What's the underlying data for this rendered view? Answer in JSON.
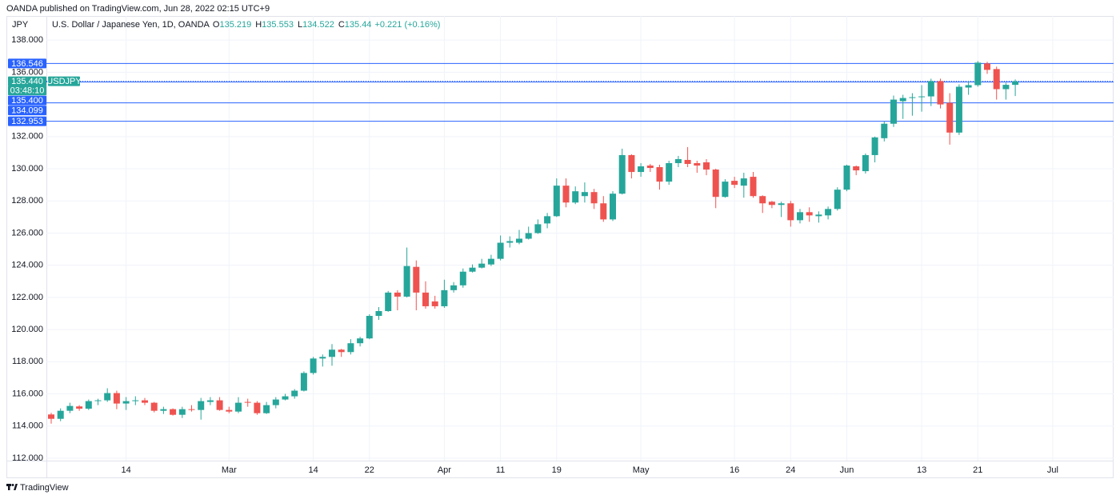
{
  "chart_data": {
    "type": "candlestick",
    "attribution": "OANDA published on TradingView.com, Jun 28, 2022 02:15 UTC+9",
    "title": "U.S. Dollar / Japanese Yen, 1D, OANDA",
    "ohlc_letters": [
      "O",
      "H",
      "L",
      "C"
    ],
    "change": "+0.221 (+0.16%)",
    "y_label": "JPY",
    "brand": "TradingView",
    "up_color": "#26a69a",
    "down_color": "#ef5350",
    "grid": true,
    "categories": [
      null,
      null,
      null,
      null,
      null,
      null,
      null,
      null,
      "14",
      null,
      null,
      null,
      null,
      null,
      null,
      null,
      null,
      null,
      null,
      "Mar",
      null,
      null,
      null,
      null,
      null,
      null,
      null,
      null,
      "14",
      null,
      null,
      null,
      null,
      null,
      "22",
      null,
      null,
      null,
      null,
      null,
      null,
      null,
      "Apr",
      null,
      null,
      null,
      null,
      null,
      "11",
      null,
      null,
      null,
      null,
      null,
      "19",
      null,
      null,
      null,
      null,
      null,
      null,
      null,
      null,
      "May",
      null,
      null,
      null,
      null,
      null,
      null,
      null,
      null,
      null,
      "16",
      null,
      null,
      null,
      null,
      null,
      "24",
      null,
      null,
      null,
      null,
      null,
      "Jun",
      null,
      null,
      null,
      null,
      null,
      null,
      null,
      "13",
      null,
      null,
      null,
      null,
      null,
      "21",
      null,
      null,
      null,
      null,
      null,
      null,
      null,
      "Jul"
    ],
    "open": [
      114.72,
      114.45,
      114.95,
      115.22,
      115.08,
      115.55,
      115.6,
      116.05,
      115.4,
      115.55,
      115.6,
      115.45,
      114.95,
      115.05,
      114.7,
      115.05,
      115.0,
      115.5,
      115.6,
      115.0,
      114.9,
      115.5,
      115.45,
      114.8,
      115.3,
      115.65,
      115.85,
      116.2,
      117.3,
      118.2,
      118.3,
      118.75,
      118.6,
      119.15,
      119.45,
      120.85,
      121.15,
      122.3,
      122.05,
      123.9,
      122.3,
      121.75,
      121.45,
      122.45,
      122.75,
      123.6,
      123.85,
      124.05,
      124.4,
      125.4,
      125.4,
      125.65,
      126.0,
      126.6,
      127.05,
      128.95,
      127.9,
      128.3,
      128.55,
      127.85,
      126.85,
      128.45,
      130.85,
      129.8,
      130.2,
      130.1,
      129.2,
      130.35,
      130.55,
      130.35,
      130.4,
      129.95,
      128.25,
      129.25,
      128.95,
      129.5,
      128.3,
      127.95,
      127.75,
      127.85,
      126.8,
      127.3,
      127.05,
      127.1,
      127.5,
      128.7,
      130.15,
      129.85,
      130.85,
      131.9,
      132.8,
      134.2,
      134.4,
      134.45,
      134.5,
      135.45,
      134.1,
      132.25,
      135.05,
      135.2,
      136.55,
      136.2,
      134.95,
      135.219,
      null,
      null,
      null,
      null
    ],
    "high": [
      114.82,
      115.1,
      115.45,
      115.3,
      115.65,
      115.7,
      116.35,
      116.2,
      115.8,
      115.85,
      115.75,
      115.5,
      115.2,
      115.1,
      115.2,
      115.3,
      115.75,
      115.8,
      115.8,
      115.2,
      115.8,
      115.7,
      115.55,
      115.5,
      115.8,
      116.0,
      116.3,
      117.4,
      118.3,
      118.45,
      119.1,
      118.8,
      119.4,
      119.55,
      120.95,
      121.4,
      122.4,
      122.45,
      125.1,
      124.3,
      123.0,
      122.1,
      123.1,
      122.95,
      123.8,
      124.05,
      124.4,
      124.65,
      125.85,
      125.8,
      126.2,
      126.4,
      126.85,
      127.25,
      129.4,
      129.4,
      128.9,
      129.15,
      128.75,
      128.3,
      128.6,
      131.25,
      130.9,
      130.35,
      130.3,
      130.25,
      130.5,
      130.8,
      131.35,
      130.5,
      130.6,
      130.0,
      129.35,
      129.5,
      129.75,
      129.8,
      128.35,
      128.0,
      127.95,
      128.0,
      127.5,
      127.6,
      127.35,
      127.65,
      128.85,
      130.25,
      130.2,
      130.95,
      132.0,
      132.95,
      134.55,
      134.6,
      134.7,
      135.2,
      135.6,
      135.6,
      134.7,
      135.25,
      135.45,
      136.7,
      136.65,
      136.35,
      135.35,
      135.553,
      null,
      null,
      null,
      null
    ],
    "low": [
      114.15,
      114.3,
      114.8,
      114.95,
      115.0,
      115.3,
      115.5,
      115.05,
      115.0,
      115.3,
      115.3,
      114.85,
      114.75,
      114.65,
      114.5,
      114.9,
      114.4,
      115.3,
      114.95,
      114.8,
      114.8,
      115.2,
      114.7,
      114.75,
      115.1,
      115.6,
      115.7,
      116.15,
      117.2,
      117.7,
      117.75,
      118.3,
      118.45,
      118.95,
      119.4,
      120.6,
      121.1,
      121.2,
      122.0,
      121.2,
      121.3,
      121.3,
      121.35,
      122.3,
      122.6,
      123.55,
      123.8,
      123.95,
      124.3,
      125.1,
      125.3,
      125.6,
      125.95,
      126.3,
      127.0,
      127.6,
      127.8,
      127.9,
      127.5,
      126.7,
      126.75,
      128.4,
      129.4,
      129.5,
      129.8,
      128.7,
      129.0,
      130.1,
      130.1,
      129.75,
      129.6,
      127.55,
      128.2,
      128.8,
      128.2,
      128.2,
      127.25,
      127.55,
      127.0,
      126.4,
      126.6,
      126.7,
      126.65,
      126.85,
      127.4,
      128.6,
      129.6,
      129.7,
      130.4,
      131.7,
      132.6,
      133.1,
      133.3,
      133.55,
      133.9,
      133.75,
      131.5,
      132.1,
      134.6,
      135.1,
      135.9,
      134.3,
      134.3,
      134.522,
      null,
      null,
      null,
      null
    ],
    "close": [
      114.45,
      114.95,
      115.25,
      115.08,
      115.55,
      115.6,
      116.05,
      115.4,
      115.55,
      115.6,
      115.45,
      114.95,
      115.05,
      114.7,
      115.05,
      115.0,
      115.55,
      115.6,
      115.0,
      114.9,
      115.45,
      115.45,
      114.8,
      115.3,
      115.65,
      115.85,
      116.2,
      117.3,
      118.2,
      118.3,
      118.75,
      118.6,
      119.15,
      119.45,
      120.85,
      121.15,
      122.3,
      122.05,
      123.95,
      122.3,
      121.45,
      121.45,
      122.45,
      122.75,
      123.6,
      123.85,
      124.1,
      124.4,
      125.4,
      125.5,
      125.65,
      126.0,
      126.55,
      127.05,
      128.95,
      127.9,
      128.6,
      128.55,
      127.85,
      126.85,
      128.45,
      130.85,
      129.8,
      130.15,
      130.05,
      129.2,
      130.35,
      130.6,
      130.3,
      130.2,
      129.95,
      128.25,
      129.2,
      129.0,
      129.4,
      128.3,
      127.85,
      127.75,
      127.85,
      126.8,
      127.3,
      127.1,
      127.15,
      127.5,
      128.7,
      130.2,
      129.9,
      130.85,
      131.95,
      132.8,
      134.3,
      134.4,
      134.45,
      134.5,
      135.45,
      134.0,
      132.25,
      135.1,
      135.2,
      136.6,
      136.15,
      134.95,
      135.219,
      135.44,
      null,
      null,
      null,
      null
    ],
    "ylim": [
      111.85,
      139.5
    ],
    "yticks": [
      {
        "value": 112,
        "label": "112.000"
      },
      {
        "value": 114,
        "label": "114.000"
      },
      {
        "value": 116,
        "label": "116.000"
      },
      {
        "value": 118,
        "label": "118.000"
      },
      {
        "value": 120,
        "label": "120.000"
      },
      {
        "value": 122,
        "label": "122.000"
      },
      {
        "value": 124,
        "label": "124.000"
      },
      {
        "value": 126,
        "label": "126.000"
      },
      {
        "value": 128,
        "label": "128.000"
      },
      {
        "value": 130,
        "label": "130.000"
      },
      {
        "value": 132,
        "label": "132.000"
      },
      {
        "value": 136,
        "label": "136.000"
      },
      {
        "value": 138,
        "label": "138.000"
      }
    ],
    "current_price": {
      "value": 135.44,
      "label": "135.440",
      "symbol": "USDJPY",
      "countdown": "03:48:10",
      "color": "#26a69a",
      "line_color": "#2962ff"
    },
    "price_lines": [
      {
        "value": 136.546,
        "color": "#2962ff"
      },
      {
        "value": 135.4,
        "label": "135.400",
        "color": "#2962ff"
      },
      {
        "value": 134.099,
        "color": "#2962ff"
      },
      {
        "value": 132.953,
        "color": "#2962ff"
      }
    ]
  }
}
